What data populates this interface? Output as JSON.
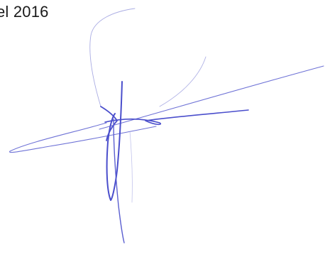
{
  "document": {
    "date_text": "el 2016"
  },
  "signature": {
    "ink_color": "#4a4ecc"
  }
}
